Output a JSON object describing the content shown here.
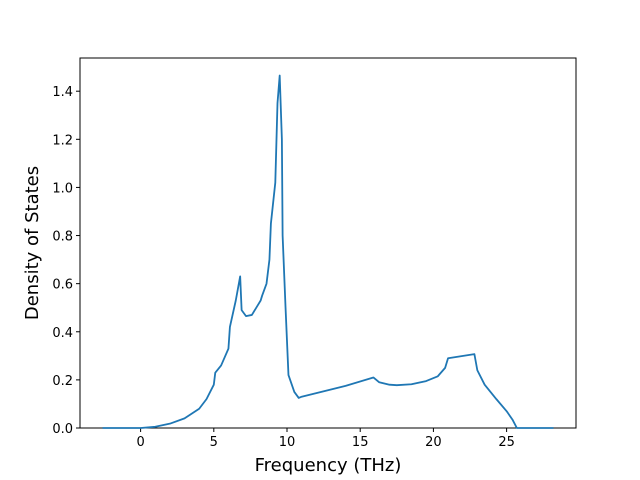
{
  "chart_data": {
    "type": "line",
    "xlabel": "Frequency (THz)",
    "ylabel": "Density of States",
    "x": [
      -2.6,
      0,
      1,
      2,
      3,
      4,
      4.5,
      5,
      5.1,
      5.5,
      6,
      6.1,
      6.5,
      6.8,
      6.9,
      7.2,
      7.6,
      8,
      8.2,
      8.3,
      8.6,
      8.8,
      8.9,
      9.2,
      9.35,
      9.5,
      9.65,
      9.7,
      9.9,
      10.1,
      10.5,
      10.8,
      11,
      12,
      14,
      15.9,
      16.3,
      17,
      17.5,
      18.5,
      19.5,
      20.3,
      20.8,
      21,
      22.8,
      23,
      23.5,
      24.3,
      25,
      25.4,
      25.7,
      28.2
    ],
    "series": [
      {
        "name": "DOS",
        "color": "#1f77b4",
        "values": [
          0,
          0,
          0.005,
          0.018,
          0.04,
          0.08,
          0.12,
          0.18,
          0.23,
          0.26,
          0.33,
          0.42,
          0.53,
          0.63,
          0.49,
          0.465,
          0.47,
          0.51,
          0.53,
          0.55,
          0.6,
          0.7,
          0.85,
          1.02,
          1.35,
          1.465,
          1.2,
          0.8,
          0.5,
          0.22,
          0.15,
          0.125,
          0.13,
          0.145,
          0.175,
          0.21,
          0.19,
          0.18,
          0.178,
          0.182,
          0.195,
          0.215,
          0.25,
          0.29,
          0.307,
          0.24,
          0.18,
          0.12,
          0.07,
          0.035,
          0,
          0
        ]
      }
    ],
    "xlim": [
      -4.14,
      29.74
    ],
    "xticks": [
      0,
      5,
      10,
      15,
      20,
      25
    ],
    "ylim": [
      0,
      1.538
    ],
    "yticks": [
      {
        "value": 0,
        "label": "0.0"
      },
      {
        "value": 0.2,
        "label": "0.2"
      },
      {
        "value": 0.4,
        "label": "0.4"
      },
      {
        "value": 0.6,
        "label": "0.6"
      },
      {
        "value": 0.8,
        "label": "0.8"
      },
      {
        "value": 1.0,
        "label": "1.0"
      },
      {
        "value": 1.2,
        "label": "1.2"
      },
      {
        "value": 1.4,
        "label": "1.4"
      }
    ]
  }
}
